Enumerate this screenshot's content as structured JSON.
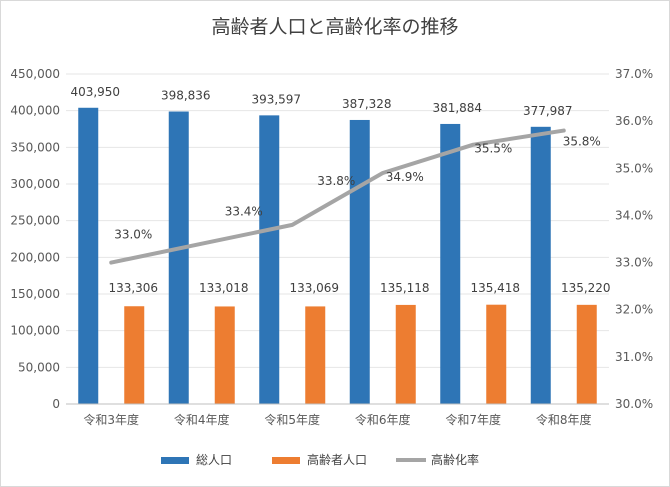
{
  "chart_data": {
    "type": "bar",
    "title": "高齢者人口と高齢化率の推移",
    "categories": [
      "令和3年度",
      "令和4年度",
      "令和5年度",
      "令和6年度",
      "令和7年度",
      "令和8年度"
    ],
    "series": [
      {
        "name": "総人口",
        "type": "bar",
        "axis": "left",
        "color": "#2e75b6",
        "values": [
          403950,
          398836,
          393597,
          387328,
          381884,
          377987
        ],
        "labels": [
          "403,950",
          "398,836",
          "393,597",
          "387,328",
          "381,884",
          "377,987"
        ]
      },
      {
        "name": "高齢者人口",
        "type": "bar",
        "axis": "left",
        "color": "#ed7d31",
        "values": [
          133306,
          133018,
          133069,
          135118,
          135418,
          135220
        ],
        "labels": [
          "133,306",
          "133,018",
          "133,069",
          "135,118",
          "135,418",
          "135,220"
        ]
      },
      {
        "name": "高齢化率",
        "type": "line",
        "axis": "right",
        "color": "#a5a5a5",
        "values": [
          33.0,
          33.4,
          33.8,
          34.9,
          35.5,
          35.8
        ],
        "labels": [
          "33.0%",
          "33.4%",
          "33.8%",
          "34.9%",
          "35.5%",
          "35.8%"
        ]
      }
    ],
    "y_left": {
      "min": 0,
      "max": 450000,
      "step": 50000,
      "ticks": [
        "0",
        "50,000",
        "100,000",
        "150,000",
        "200,000",
        "250,000",
        "300,000",
        "350,000",
        "400,000",
        "450,000"
      ]
    },
    "y_right": {
      "min": 30.0,
      "max": 37.0,
      "step": 1.0,
      "ticks": [
        "30.0%",
        "31.0%",
        "32.0%",
        "33.0%",
        "34.0%",
        "35.0%",
        "36.0%",
        "37.0%"
      ]
    },
    "grid": true,
    "legend_position": "bottom"
  }
}
